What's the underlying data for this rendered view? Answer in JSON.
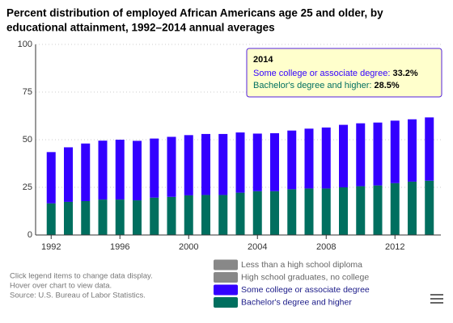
{
  "chart_data": {
    "type": "stacked-bar",
    "title": [
      "Percent distribution of employed African Americans age 25 and older, by",
      "educational attainment, 1992–2014 annual averages"
    ],
    "x": [
      1992,
      1993,
      1994,
      1995,
      1996,
      1997,
      1998,
      1999,
      2000,
      2001,
      2002,
      2003,
      2004,
      2005,
      2006,
      2007,
      2008,
      2009,
      2010,
      2011,
      2012,
      2013,
      2014
    ],
    "xlim": [
      1991,
      2015
    ],
    "xticks": [
      1992,
      1996,
      2000,
      2004,
      2008,
      2012
    ],
    "ylim": [
      0,
      100
    ],
    "yticks": [
      0,
      25,
      50,
      75,
      100
    ],
    "grid": true,
    "series": [
      {
        "name": "Less than a high school diploma",
        "color": "#888888",
        "visible": false,
        "values": [
          null,
          null,
          null,
          null,
          null,
          null,
          null,
          null,
          null,
          null,
          null,
          null,
          null,
          null,
          null,
          null,
          null,
          null,
          null,
          null,
          null,
          null,
          null
        ]
      },
      {
        "name": "High school graduates, no college",
        "color": "#888888",
        "visible": false,
        "values": [
          null,
          null,
          null,
          null,
          null,
          null,
          null,
          null,
          null,
          null,
          null,
          null,
          null,
          null,
          null,
          null,
          null,
          null,
          null,
          null,
          null,
          null,
          null
        ]
      },
      {
        "name": "Some college or associate degree",
        "color": "#3300ff",
        "visible": true,
        "values": [
          26.9,
          28.6,
          30.2,
          30.9,
          31.4,
          31.2,
          31.0,
          31.5,
          31.6,
          32.0,
          32.0,
          31.6,
          30.2,
          30.4,
          30.8,
          31.4,
          32.0,
          32.8,
          33.0,
          33.0,
          32.8,
          32.7,
          33.2
        ]
      },
      {
        "name": "Bachelor's degree and higher",
        "color": "#006f5f",
        "visible": true,
        "values": [
          16.6,
          17.4,
          17.8,
          18.6,
          18.6,
          18.2,
          19.6,
          20.0,
          20.8,
          21.0,
          21.0,
          22.2,
          23.0,
          23.0,
          24.0,
          24.4,
          24.4,
          25.0,
          25.6,
          26.0,
          27.2,
          28.0,
          28.5
        ]
      }
    ],
    "tooltip": {
      "x": 2014,
      "items": [
        {
          "name": "Some college or associate degree",
          "label": "33.2%"
        },
        {
          "name": "Bachelor's degree and higher",
          "label": "28.5%"
        }
      ]
    },
    "notes": [
      "Click legend items to change data display.",
      "Hover over chart to view data.",
      "Source: U.S. Bureau of Labor Statistics."
    ]
  }
}
